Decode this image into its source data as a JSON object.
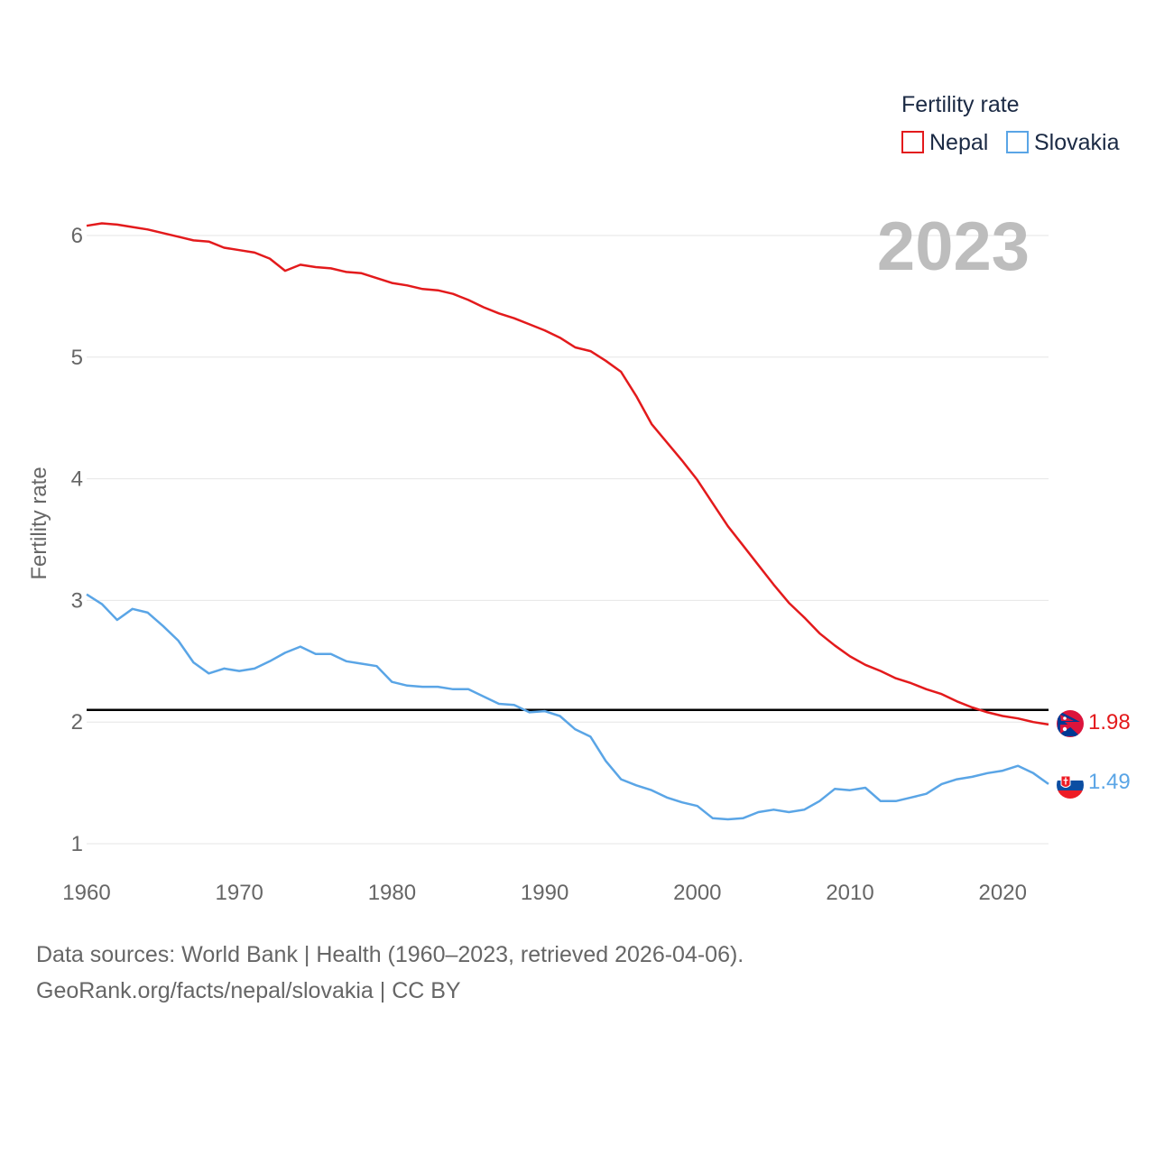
{
  "chart_data": {
    "type": "line",
    "year_label": "2023",
    "ylabel": "Fertility rate",
    "xlabel": "",
    "xlim": [
      1960,
      2023
    ],
    "ylim": [
      1,
      6.25
    ],
    "x_ticks": [
      1960,
      1970,
      1980,
      1990,
      2000,
      2010,
      2020
    ],
    "y_ticks": [
      1,
      2,
      3,
      4,
      5,
      6
    ],
    "legend": {
      "title": "Fertility rate",
      "position": "top-right"
    },
    "reference_line": {
      "y": 2.1
    },
    "x": [
      1960,
      1961,
      1962,
      1963,
      1964,
      1965,
      1966,
      1967,
      1968,
      1969,
      1970,
      1971,
      1972,
      1973,
      1974,
      1975,
      1976,
      1977,
      1978,
      1979,
      1980,
      1981,
      1982,
      1983,
      1984,
      1985,
      1986,
      1987,
      1988,
      1989,
      1990,
      1991,
      1992,
      1993,
      1994,
      1995,
      1996,
      1997,
      1998,
      1999,
      2000,
      2001,
      2002,
      2003,
      2004,
      2005,
      2006,
      2007,
      2008,
      2009,
      2010,
      2011,
      2012,
      2013,
      2014,
      2015,
      2016,
      2017,
      2018,
      2019,
      2020,
      2021,
      2022,
      2023
    ],
    "series": [
      {
        "name": "Nepal",
        "color": "#e31a1c",
        "end_label": "1.98",
        "values": [
          6.08,
          6.1,
          6.09,
          6.07,
          6.05,
          6.02,
          5.99,
          5.96,
          5.95,
          5.9,
          5.88,
          5.86,
          5.81,
          5.71,
          5.76,
          5.74,
          5.73,
          5.7,
          5.69,
          5.65,
          5.61,
          5.59,
          5.56,
          5.55,
          5.52,
          5.47,
          5.41,
          5.36,
          5.32,
          5.27,
          5.22,
          5.16,
          5.08,
          5.05,
          4.97,
          4.88,
          4.68,
          4.45,
          4.3,
          4.15,
          3.99,
          3.8,
          3.61,
          3.45,
          3.29,
          3.13,
          2.98,
          2.86,
          2.73,
          2.63,
          2.54,
          2.47,
          2.42,
          2.36,
          2.32,
          2.27,
          2.23,
          2.17,
          2.12,
          2.08,
          2.05,
          2.03,
          2.0,
          1.98
        ]
      },
      {
        "name": "Slovakia",
        "color": "#5aa5e6",
        "end_label": "1.49",
        "values": [
          3.05,
          2.97,
          2.84,
          2.93,
          2.9,
          2.79,
          2.67,
          2.49,
          2.4,
          2.44,
          2.42,
          2.44,
          2.5,
          2.57,
          2.62,
          2.56,
          2.56,
          2.5,
          2.48,
          2.46,
          2.33,
          2.3,
          2.29,
          2.29,
          2.27,
          2.27,
          2.21,
          2.15,
          2.14,
          2.08,
          2.09,
          2.05,
          1.94,
          1.88,
          1.68,
          1.53,
          1.48,
          1.44,
          1.38,
          1.34,
          1.31,
          1.21,
          1.2,
          1.21,
          1.26,
          1.28,
          1.26,
          1.28,
          1.35,
          1.45,
          1.44,
          1.46,
          1.35,
          1.35,
          1.38,
          1.41,
          1.49,
          1.53,
          1.55,
          1.58,
          1.6,
          1.64,
          1.58,
          1.49
        ]
      }
    ]
  },
  "footer": {
    "source": "Data sources: World Bank | Health (1960–2023, retrieved 2026-04-06).",
    "url": "GeoRank.org/facts/nepal/slovakia | CC BY"
  }
}
